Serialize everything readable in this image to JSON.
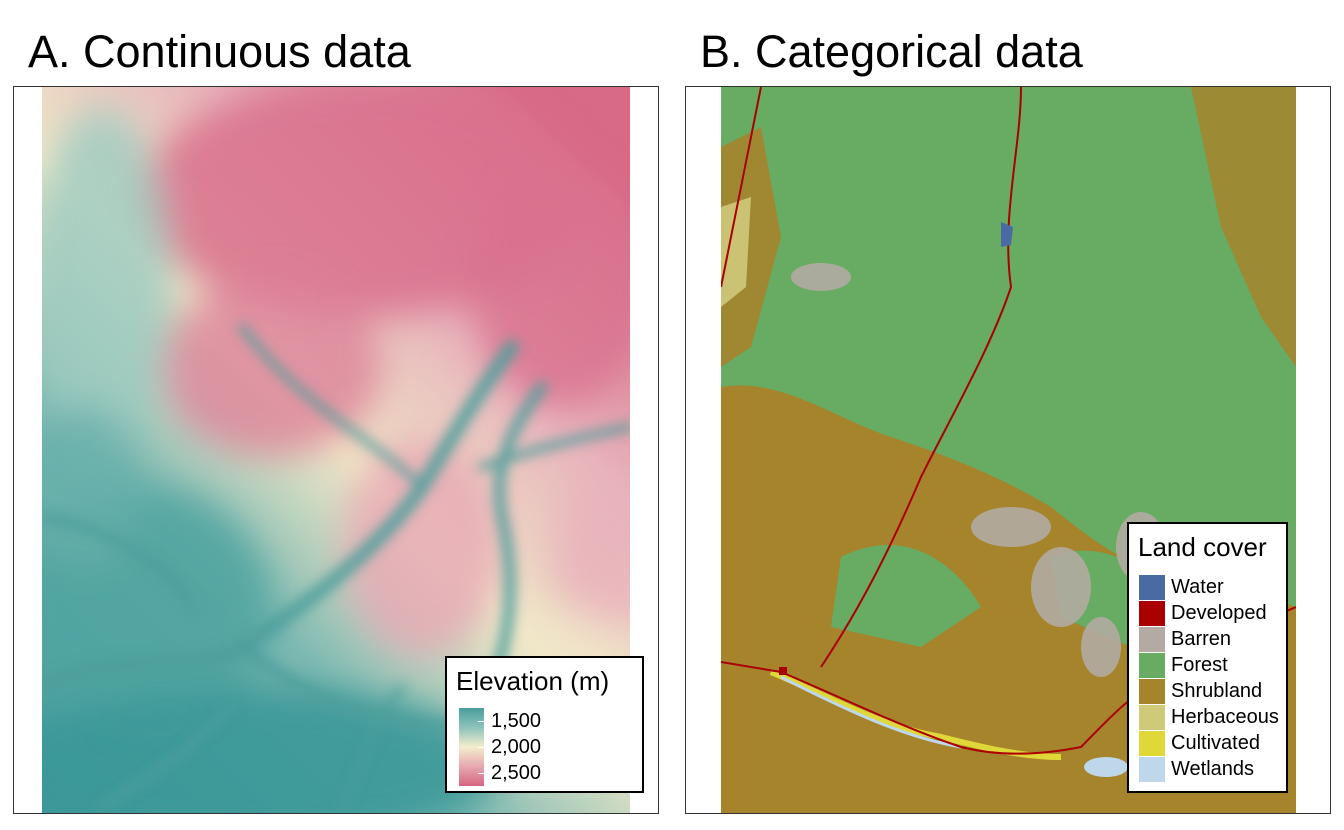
{
  "panels": {
    "a": {
      "title": "A. Continuous data",
      "legend": {
        "title": "Elevation (m)",
        "ticks": [
          "1,500",
          "2,000",
          "2,500"
        ],
        "gradient_colors": [
          "#4a9d9d",
          "#8ec3bb",
          "#f3edcc",
          "#e6a8b1",
          "#d56480"
        ]
      }
    },
    "b": {
      "title": "B. Categorical data",
      "legend": {
        "title": "Land cover",
        "classes": [
          {
            "label": "Water",
            "color": "#4a6aa4"
          },
          {
            "label": "Developed",
            "color": "#aa0000"
          },
          {
            "label": "Barren",
            "color": "#b3aba3"
          },
          {
            "label": "Forest",
            "color": "#68ab63"
          },
          {
            "label": "Shrubland",
            "color": "#a6842c"
          },
          {
            "label": "Herbaceous",
            "color": "#cfc97a"
          },
          {
            "label": "Cultivated",
            "color": "#e0d838"
          },
          {
            "label": "Wetlands",
            "color": "#bed7ea"
          }
        ]
      }
    }
  }
}
